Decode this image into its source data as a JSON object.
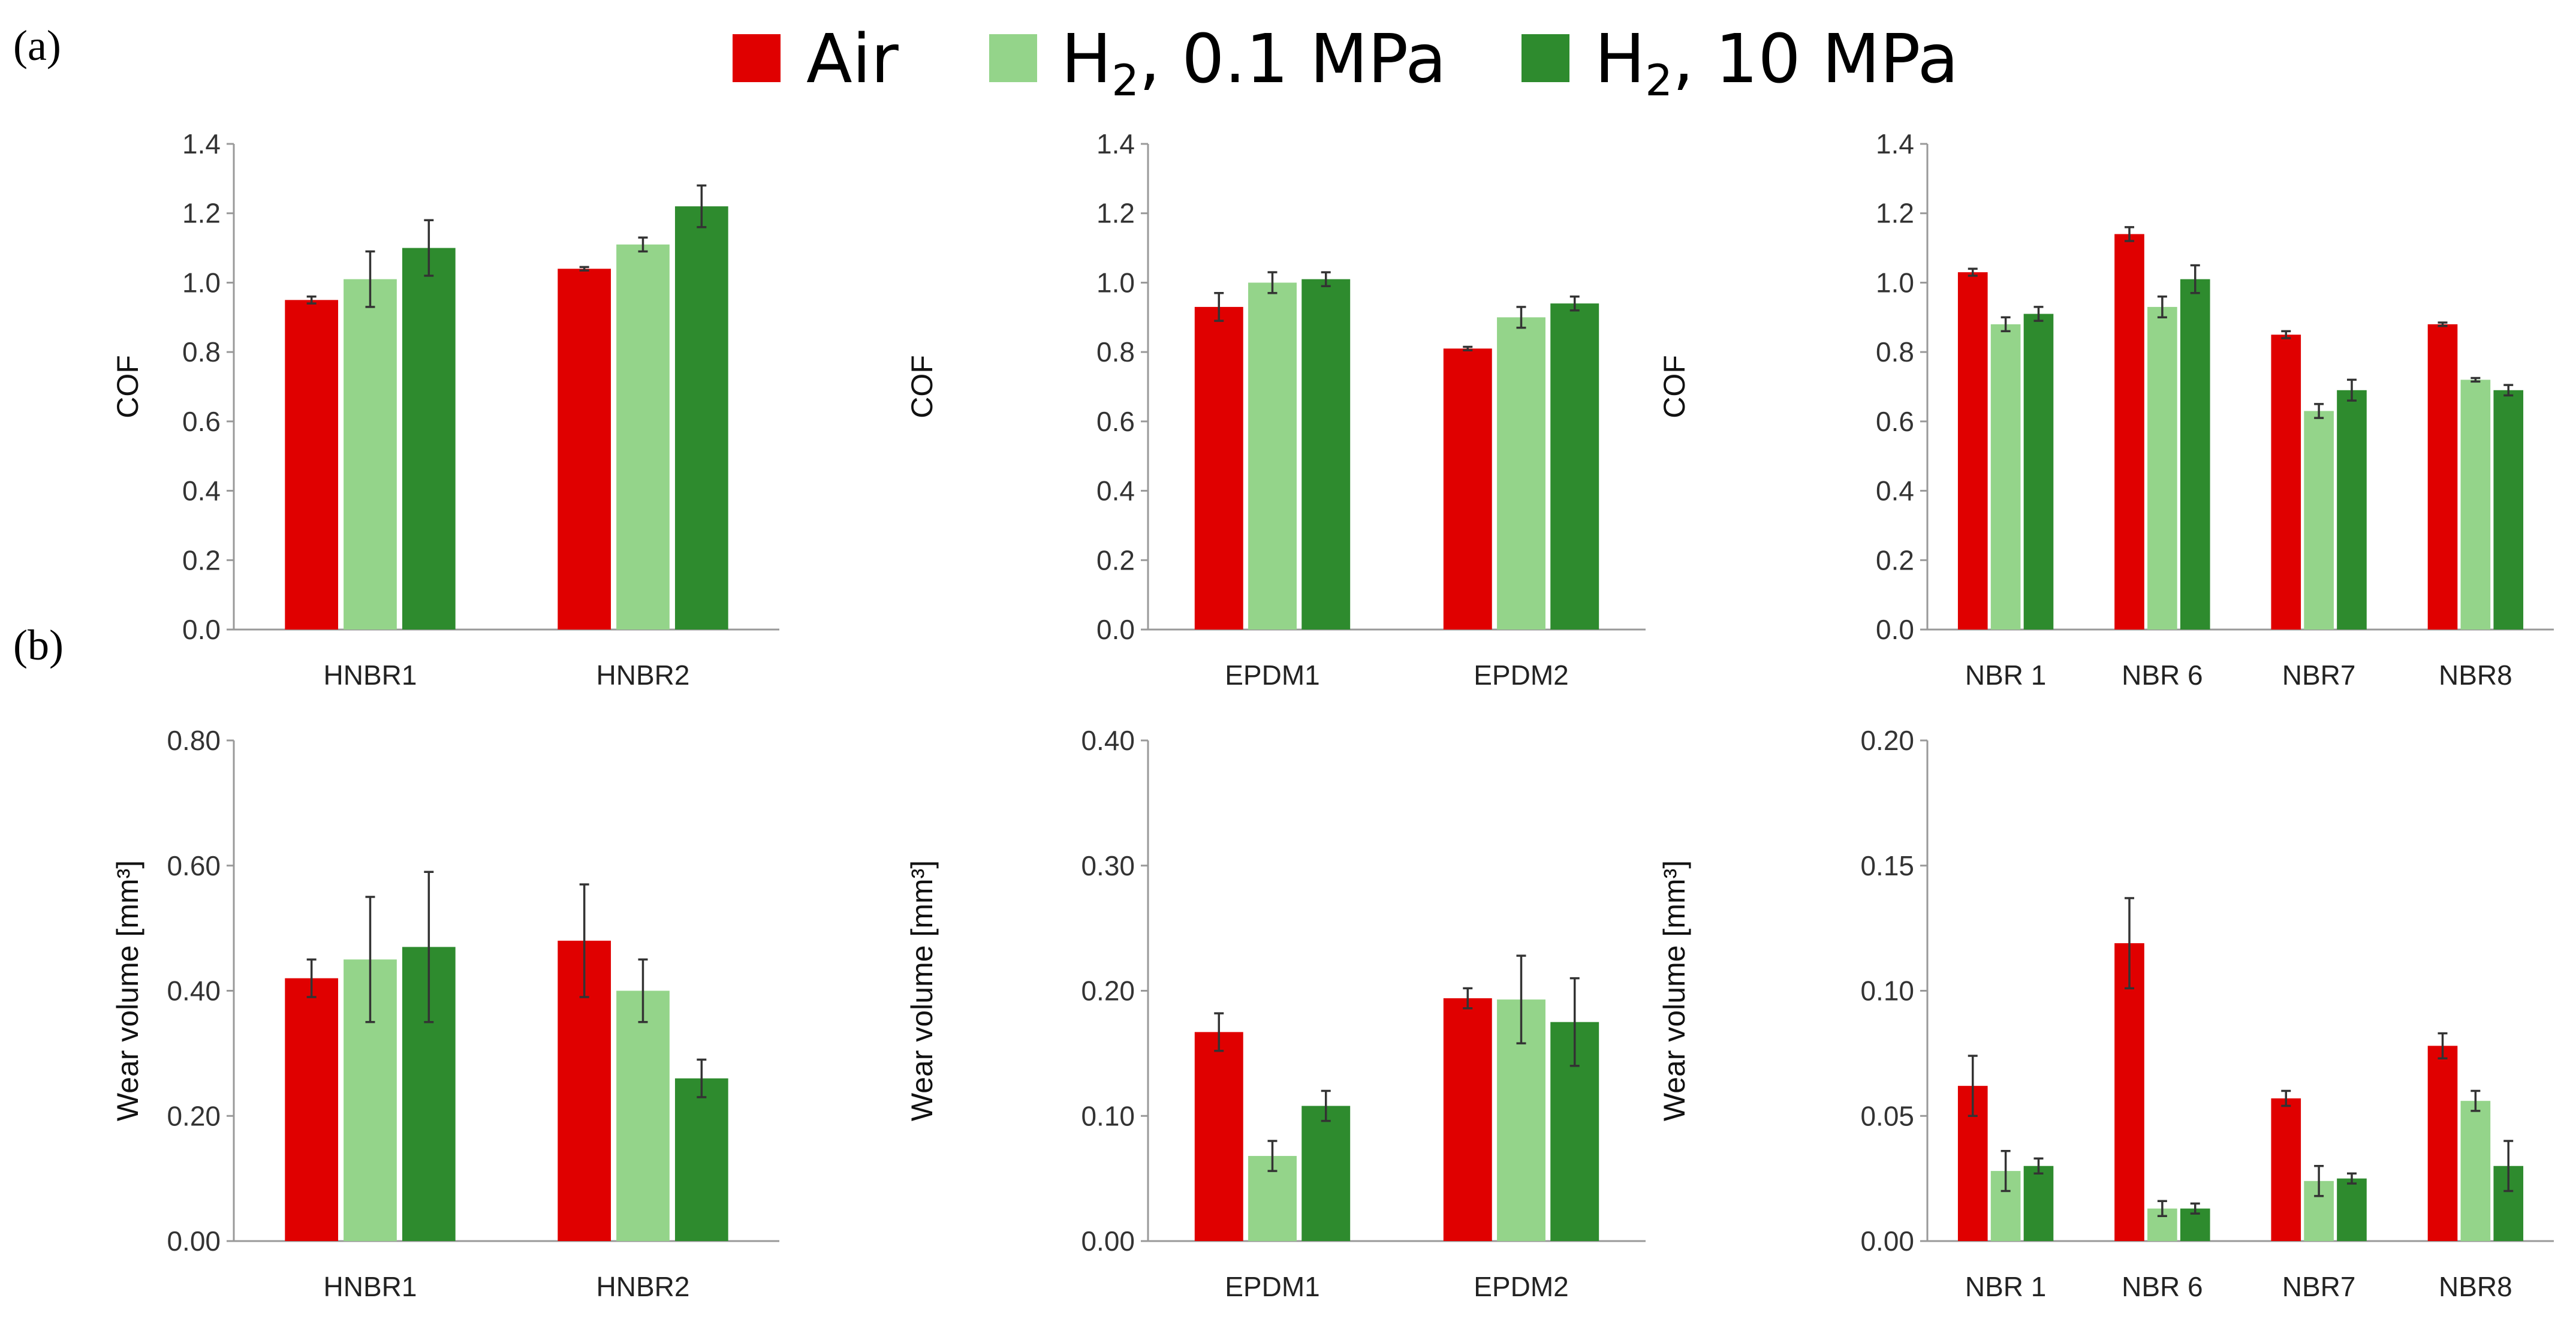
{
  "panel_labels": [
    "(a)",
    "(b)"
  ],
  "legend": [
    {
      "name": "Air",
      "color": "#e00000"
    },
    {
      "name": "H",
      "sub": "2",
      "suffix": ", 0.1 MPa",
      "color": "#94d48a"
    },
    {
      "name": "H",
      "sub": "2",
      "suffix": ", 10 MPa",
      "color": "#2e8b2e"
    }
  ],
  "chart_data": [
    {
      "type": "bar",
      "id": "cof-hnbr",
      "row": "a",
      "col": 0,
      "ylabel": "COF",
      "ylim": [
        0,
        1.4
      ],
      "yticks": [
        "0.0",
        "0.2",
        "0.4",
        "0.6",
        "0.8",
        "1.0",
        "1.2",
        "1.4"
      ],
      "categories": [
        "HNBR1",
        "HNBR2"
      ],
      "series": [
        {
          "name": "Air",
          "values": [
            0.95,
            1.04
          ],
          "errors": [
            0.01,
            0.005
          ]
        },
        {
          "name": "H2, 0.1 MPa",
          "values": [
            1.01,
            1.11
          ],
          "errors": [
            0.08,
            0.02
          ]
        },
        {
          "name": "H2, 10 MPa",
          "values": [
            1.1,
            1.22
          ],
          "errors": [
            0.08,
            0.06
          ]
        }
      ]
    },
    {
      "type": "bar",
      "id": "cof-epdm",
      "row": "a",
      "col": 1,
      "ylabel": "COF",
      "ylim": [
        0,
        1.4
      ],
      "yticks": [
        "0.0",
        "0.2",
        "0.4",
        "0.6",
        "0.8",
        "1.0",
        "1.2",
        "1.4"
      ],
      "categories": [
        "EPDM1",
        "EPDM2"
      ],
      "series": [
        {
          "name": "Air",
          "values": [
            0.93,
            0.81
          ],
          "errors": [
            0.04,
            0.005
          ]
        },
        {
          "name": "H2, 0.1 MPa",
          "values": [
            1.0,
            0.9
          ],
          "errors": [
            0.03,
            0.03
          ]
        },
        {
          "name": "H2, 10 MPa",
          "values": [
            1.01,
            0.94
          ],
          "errors": [
            0.02,
            0.02
          ]
        }
      ]
    },
    {
      "type": "bar",
      "id": "cof-nbr",
      "row": "a",
      "col": 2,
      "ylabel": "COF",
      "ylim": [
        0,
        1.4
      ],
      "yticks": [
        "0.0",
        "0.2",
        "0.4",
        "0.6",
        "0.8",
        "1.0",
        "1.2",
        "1.4"
      ],
      "categories": [
        "NBR 1",
        "NBR 6",
        "NBR7",
        "NBR8"
      ],
      "series": [
        {
          "name": "Air",
          "values": [
            1.03,
            1.14,
            0.85,
            0.88
          ],
          "errors": [
            0.01,
            0.02,
            0.01,
            0.005
          ]
        },
        {
          "name": "H2, 0.1 MPa",
          "values": [
            0.88,
            0.93,
            0.63,
            0.72
          ],
          "errors": [
            0.02,
            0.03,
            0.02,
            0.005
          ]
        },
        {
          "name": "H2, 10 MPa",
          "values": [
            0.91,
            1.01,
            0.69,
            0.69
          ],
          "errors": [
            0.02,
            0.04,
            0.03,
            0.015
          ]
        }
      ]
    },
    {
      "type": "bar",
      "id": "wear-hnbr",
      "row": "b",
      "col": 0,
      "ylabel": "Wear volume [mm³]",
      "ylim": [
        0,
        0.8
      ],
      "yticks": [
        "0.00",
        "0.20",
        "0.40",
        "0.60",
        "0.80"
      ],
      "categories": [
        "HNBR1",
        "HNBR2"
      ],
      "series": [
        {
          "name": "Air",
          "values": [
            0.42,
            0.48
          ],
          "errors": [
            0.03,
            0.09
          ]
        },
        {
          "name": "H2, 0.1 MPa",
          "values": [
            0.45,
            0.4
          ],
          "errors": [
            0.1,
            0.05
          ]
        },
        {
          "name": "H2, 10 MPa",
          "values": [
            0.47,
            0.26
          ],
          "errors": [
            0.12,
            0.03
          ]
        }
      ]
    },
    {
      "type": "bar",
      "id": "wear-epdm",
      "row": "b",
      "col": 1,
      "ylabel": "Wear volume [mm³]",
      "ylim": [
        0,
        0.4
      ],
      "yticks": [
        "0.00",
        "0.10",
        "0.20",
        "0.30",
        "0.40"
      ],
      "categories": [
        "EPDM1",
        "EPDM2"
      ],
      "series": [
        {
          "name": "Air",
          "values": [
            0.167,
            0.194
          ],
          "errors": [
            0.015,
            0.008
          ]
        },
        {
          "name": "H2, 0.1 MPa",
          "values": [
            0.068,
            0.193
          ],
          "errors": [
            0.012,
            0.035
          ]
        },
        {
          "name": "H2, 10 MPa",
          "values": [
            0.108,
            0.175
          ],
          "errors": [
            0.012,
            0.035
          ]
        }
      ]
    },
    {
      "type": "bar",
      "id": "wear-nbr",
      "row": "b",
      "col": 2,
      "ylabel": "Wear volume [mm³]",
      "ylim": [
        0,
        0.2
      ],
      "yticks": [
        "0.00",
        "0.05",
        "0.10",
        "0.15",
        "0.20"
      ],
      "categories": [
        "NBR 1",
        "NBR 6",
        "NBR7",
        "NBR8"
      ],
      "series": [
        {
          "name": "Air",
          "values": [
            0.062,
            0.119,
            0.057,
            0.078
          ],
          "errors": [
            0.012,
            0.018,
            0.003,
            0.005
          ]
        },
        {
          "name": "H2, 0.1 MPa",
          "values": [
            0.028,
            0.013,
            0.024,
            0.056
          ],
          "errors": [
            0.008,
            0.003,
            0.006,
            0.004
          ]
        },
        {
          "name": "H2, 10 MPa",
          "values": [
            0.03,
            0.013,
            0.025,
            0.03
          ],
          "errors": [
            0.003,
            0.002,
            0.002,
            0.01
          ]
        }
      ]
    }
  ]
}
